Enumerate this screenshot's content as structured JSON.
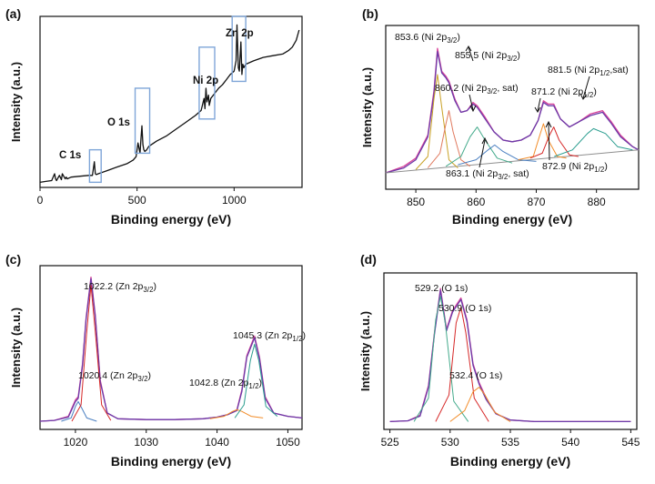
{
  "chart_data": [
    {
      "panel": "(a)",
      "type": "line",
      "xlabel": "Binding energy (eV)",
      "ylabel": "Intensity (a.u.)",
      "xlim": [
        0,
        1350
      ],
      "xticks": [
        0,
        500,
        1000
      ],
      "ylim": [
        0,
        100
      ],
      "box_color": "#7fa6d8",
      "series": [
        {
          "name": "survey",
          "color": "#111111",
          "x": [
            0,
            30,
            60,
            75,
            80,
            85,
            100,
            110,
            115,
            130,
            135,
            140,
            160,
            200,
            250,
            270,
            280,
            285,
            290,
            300,
            350,
            400,
            450,
            480,
            495,
            505,
            515,
            520,
            525,
            530,
            535,
            540,
            550,
            560,
            600,
            650,
            700,
            750,
            800,
            830,
            845,
            850,
            855,
            860,
            868,
            872,
            880,
            900,
            920,
            940,
            960,
            980,
            1000,
            1010,
            1015,
            1022,
            1027,
            1035,
            1040,
            1045,
            1050,
            1060,
            1100,
            1150,
            1200,
            1250,
            1280,
            1300,
            1320,
            1335
          ],
          "y": [
            3,
            3.5,
            4,
            8,
            5,
            4,
            7,
            4.5,
            8,
            5,
            6,
            5,
            6,
            6.5,
            7,
            7,
            15,
            8,
            7.5,
            8,
            10,
            12,
            14,
            16,
            18,
            26,
            20,
            28,
            36,
            25,
            22,
            21,
            22,
            24,
            27,
            30,
            34,
            38,
            42,
            45,
            52,
            46,
            58,
            50,
            54,
            48,
            52,
            55,
            58,
            60,
            63,
            66,
            68,
            74,
            95,
            70,
            68,
            85,
            66,
            72,
            70,
            72,
            74,
            76,
            77,
            78,
            80,
            82,
            86,
            92
          ]
        }
      ],
      "boxes": [
        {
          "label": "C 1s",
          "x_range": [
            255,
            315
          ],
          "y_range": [
            3,
            22
          ]
        },
        {
          "label": "O 1s",
          "x_range": [
            490,
            565
          ],
          "y_range": [
            20,
            58
          ]
        },
        {
          "label": "Ni 2p",
          "x_range": [
            820,
            900
          ],
          "y_range": [
            40,
            82
          ]
        },
        {
          "label": "Zn 2p",
          "x_range": [
            990,
            1060
          ],
          "y_range": [
            62,
            100
          ]
        }
      ]
    },
    {
      "panel": "(b)",
      "type": "line",
      "xlabel": "Binding energy (eV)",
      "ylabel": "Intensity (a.u.)",
      "xlim": [
        845,
        887
      ],
      "xticks": [
        850,
        860,
        870,
        880
      ],
      "ylim": [
        0,
        100
      ],
      "series": [
        {
          "name": "raw",
          "color": "#d9449a",
          "x": [
            845,
            848,
            850,
            852,
            853,
            853.6,
            854.3,
            855,
            855.5,
            856.5,
            857.5,
            858.5,
            859.5,
            860.2,
            861.5,
            863,
            864.5,
            866,
            867.5,
            869,
            870.3,
            871.2,
            872,
            872.9,
            874,
            875.5,
            877,
            879,
            881,
            882.5,
            884,
            886,
            887
          ],
          "y": [
            10,
            14,
            19,
            33,
            60,
            86,
            72,
            69,
            66,
            55,
            47,
            48,
            53,
            51,
            44,
            35,
            30,
            29,
            30,
            33,
            42,
            54,
            52,
            52,
            43,
            38,
            41,
            46,
            48,
            41,
            33,
            26,
            24
          ]
        },
        {
          "name": "fit",
          "color": "#6b3aa8",
          "x": [
            845,
            848,
            850,
            852,
            853,
            853.6,
            854.3,
            855,
            855.5,
            856.5,
            857.5,
            858.5,
            859.5,
            860.2,
            861.5,
            863,
            864.5,
            866,
            867.5,
            869,
            870.3,
            871.2,
            872,
            872.9,
            874,
            875.5,
            877,
            879,
            881,
            882.5,
            884,
            886,
            887
          ],
          "y": [
            10,
            13,
            18,
            32,
            58,
            84,
            71,
            68,
            65,
            54,
            47,
            48,
            52,
            50,
            43,
            35,
            30,
            29,
            30,
            33,
            42,
            53,
            51,
            51,
            43,
            38,
            41,
            45,
            47,
            40,
            32,
            26,
            24
          ]
        },
        {
          "name": "background",
          "color": "#8f8f8f",
          "x": [
            845,
            887
          ],
          "y": [
            10,
            24
          ]
        },
        {
          "name": "Ni 2p3/2 (853.6)",
          "color": "#c9a227",
          "x": [
            850,
            852,
            853,
            853.6,
            854.3,
            855.5,
            857
          ],
          "y": [
            12,
            20,
            55,
            70,
            50,
            18,
            13
          ]
        },
        {
          "name": "Ni 2p3/2 (855.5)",
          "color": "#e07a5f",
          "x": [
            852,
            854,
            855,
            855.5,
            856.2,
            857.5,
            859
          ],
          "y": [
            13,
            22,
            40,
            48,
            35,
            18,
            14
          ]
        },
        {
          "name": "Ni 2p3/2 sat (860.2)",
          "color": "#43aa8b",
          "x": [
            855,
            857.5,
            859,
            860.2,
            861.5,
            863.5,
            866
          ],
          "y": [
            14,
            20,
            32,
            38,
            30,
            19,
            16
          ]
        },
        {
          "name": "Ni 2p3/2 sat (863.1)",
          "color": "#4a7fc1",
          "x": [
            857,
            860,
            862,
            863.1,
            864.5,
            867,
            870
          ],
          "y": [
            15,
            18,
            24,
            27,
            23,
            18,
            17
          ]
        },
        {
          "name": "Ni 2p1/2 (871.2)",
          "color": "#f28c28",
          "x": [
            867,
            869.5,
            870.5,
            871.2,
            872,
            873.5,
            875
          ],
          "y": [
            18,
            20,
            32,
            40,
            30,
            20,
            19
          ]
        },
        {
          "name": "Ni 2p1/2 (872.9)",
          "color": "#d62828",
          "x": [
            869,
            871,
            872.2,
            872.9,
            873.8,
            875.5,
            877
          ],
          "y": [
            19,
            22,
            33,
            38,
            30,
            21,
            20
          ]
        },
        {
          "name": "Ni 2p1/2 sat (881.5)",
          "color": "#2a9d8f",
          "x": [
            873,
            876,
            878.5,
            879.5,
            881.5,
            883.5,
            886
          ],
          "y": [
            20,
            24,
            34,
            37,
            34,
            26,
            24
          ]
        }
      ],
      "annotations": [
        {
          "text_main": "853.6 (Ni 2p",
          "sub": "3/2",
          "text_end": ")"
        },
        {
          "text_main": "855.5 (Ni 2p",
          "sub": "3/2",
          "text_end": ")"
        },
        {
          "text_main": "860.2 (Ni 2p",
          "sub": "3/2",
          "text_end": ", sat)"
        },
        {
          "text_main": "871.2 (Ni 2p",
          "sub": "1/2",
          "text_end": ")"
        },
        {
          "text_main": "881.5 (Ni 2p",
          "sub": "1/2",
          "text_end": ",sat)"
        },
        {
          "text_main": "863.1 (Ni 2p",
          "sub": "3/2",
          "text_end": ", sat)"
        },
        {
          "text_main": "872.9 (Ni 2p",
          "sub": "1/2",
          "text_end": ")"
        }
      ]
    },
    {
      "panel": "(c)",
      "type": "line",
      "xlabel": "Binding energy (eV)",
      "ylabel": "Intensity (a.u.)",
      "xlim": [
        1015,
        1052
      ],
      "xticks": [
        1020,
        1030,
        1040,
        1050
      ],
      "ylim": [
        0,
        100
      ],
      "series": [
        {
          "name": "raw",
          "color": "#d9449a",
          "x": [
            1015,
            1017,
            1019,
            1020,
            1020.4,
            1021,
            1021.5,
            1022.2,
            1022.8,
            1023.5,
            1024.5,
            1026,
            1030,
            1034,
            1038,
            1040,
            1041.5,
            1042.8,
            1043.5,
            1044.2,
            1045.3,
            1046,
            1046.8,
            1048,
            1050,
            1052
          ],
          "y": [
            5,
            5.5,
            8,
            18,
            20,
            40,
            68,
            93,
            70,
            30,
            10,
            6.5,
            6,
            6,
            6.5,
            7.5,
            9,
            12,
            24,
            45,
            57,
            44,
            20,
            10,
            8,
            7
          ]
        },
        {
          "name": "fit",
          "color": "#6b3aa8",
          "x": [
            1015,
            1017,
            1019,
            1020,
            1020.4,
            1021,
            1021.5,
            1022.2,
            1022.8,
            1023.5,
            1024.5,
            1026,
            1030,
            1034,
            1038,
            1040,
            1041.5,
            1042.8,
            1043.5,
            1044.2,
            1045.3,
            1046,
            1046.8,
            1048,
            1050,
            1052
          ],
          "y": [
            5,
            5.5,
            7.5,
            17,
            19,
            39,
            67,
            92,
            69,
            29,
            10,
            6.5,
            6,
            6,
            6.5,
            7.5,
            9,
            11.5,
            23,
            44,
            56,
            43,
            19,
            10,
            8,
            7
          ]
        },
        {
          "name": "Zn 2p3/2 (1020.4)",
          "color": "#4a7fc1",
          "x": [
            1018,
            1019.4,
            1020,
            1020.4,
            1020.9,
            1021.6,
            1023
          ],
          "y": [
            5,
            7,
            14,
            17,
            13,
            7,
            5
          ]
        },
        {
          "name": "Zn 2p3/2 (1022.2)",
          "color": "#d62828",
          "x": [
            1019.5,
            1020.8,
            1021.6,
            1022.2,
            1022.8,
            1023.7,
            1025
          ],
          "y": [
            5,
            15,
            60,
            88,
            60,
            15,
            5.5
          ]
        },
        {
          "name": "Zn 2p1/2 (1042.8)",
          "color": "#f28c28",
          "x": [
            1039,
            1041,
            1042.2,
            1042.8,
            1043.5,
            1044.8,
            1046.5
          ],
          "y": [
            6.5,
            8,
            11,
            12,
            11,
            8,
            7
          ]
        },
        {
          "name": "Zn 2p1/2 (1045.3)",
          "color": "#2a9d8f",
          "x": [
            1042.5,
            1043.8,
            1044.7,
            1045.3,
            1045.9,
            1046.9,
            1048.5
          ],
          "y": [
            7,
            15,
            42,
            52,
            42,
            14,
            8
          ]
        }
      ],
      "annotations": [
        {
          "text_main": "1022.2 (Zn 2p",
          "sub": "3/2",
          "text_end": ")"
        },
        {
          "text_main": "1045.3 (Zn 2p",
          "sub": "1/2",
          "text_end": ")"
        },
        {
          "text_main": "1020.4 (Zn 2p",
          "sub": "3/2",
          "text_end": ")"
        },
        {
          "text_main": "1042.8 (Zn 2p",
          "sub": "1/2",
          "text_end": ")"
        }
      ]
    },
    {
      "panel": "(d)",
      "type": "line",
      "xlabel": "Binding energy (eV)",
      "ylabel": "Intensity (a.u.)",
      "xlim": [
        524.5,
        545.5
      ],
      "xticks": [
        525,
        530,
        535,
        540,
        545
      ],
      "ylim": [
        0,
        100
      ],
      "series": [
        {
          "name": "raw",
          "color": "#d9449a",
          "x": [
            525,
            526.5,
            527.5,
            528.2,
            528.7,
            529.2,
            529.7,
            530.2,
            530.9,
            531.4,
            531.9,
            532.4,
            533,
            533.8,
            535,
            537,
            540,
            545
          ],
          "y": [
            5,
            5.5,
            9,
            28,
            62,
            90,
            64,
            76,
            84,
            70,
            42,
            30,
            20,
            10,
            6,
            5,
            5,
            5
          ]
        },
        {
          "name": "fit",
          "color": "#6b3aa8",
          "x": [
            525,
            526.5,
            527.5,
            528.2,
            528.7,
            529.2,
            529.7,
            530.2,
            530.9,
            531.4,
            531.9,
            532.4,
            533,
            533.8,
            535,
            537,
            540,
            545
          ],
          "y": [
            5,
            5.5,
            8.5,
            27,
            61,
            89,
            63,
            75,
            83,
            69,
            41,
            29,
            19,
            10,
            6,
            5,
            5,
            5
          ]
        },
        {
          "name": "O 1s (529.2)",
          "color": "#43aa8b",
          "x": [
            527,
            528.2,
            528.8,
            529.2,
            529.6,
            530.3,
            531.5
          ],
          "y": [
            5,
            20,
            70,
            85,
            68,
            18,
            5
          ]
        },
        {
          "name": "O 1s (530.9)",
          "color": "#d62828",
          "x": [
            528.8,
            529.9,
            530.5,
            530.9,
            531.3,
            532,
            533.2
          ],
          "y": [
            5,
            22,
            68,
            78,
            62,
            20,
            5
          ]
        },
        {
          "name": "O 1s (532.4)",
          "color": "#f28c28",
          "x": [
            530,
            531.2,
            531.9,
            532.4,
            532.9,
            533.7,
            535
          ],
          "y": [
            5,
            12,
            24,
            27,
            22,
            11,
            5
          ]
        }
      ],
      "annotations": [
        {
          "text": "529.2 (O 1s)"
        },
        {
          "text": "530.9 (O 1s)"
        },
        {
          "text": "532.4 (O 1s)"
        }
      ]
    }
  ]
}
